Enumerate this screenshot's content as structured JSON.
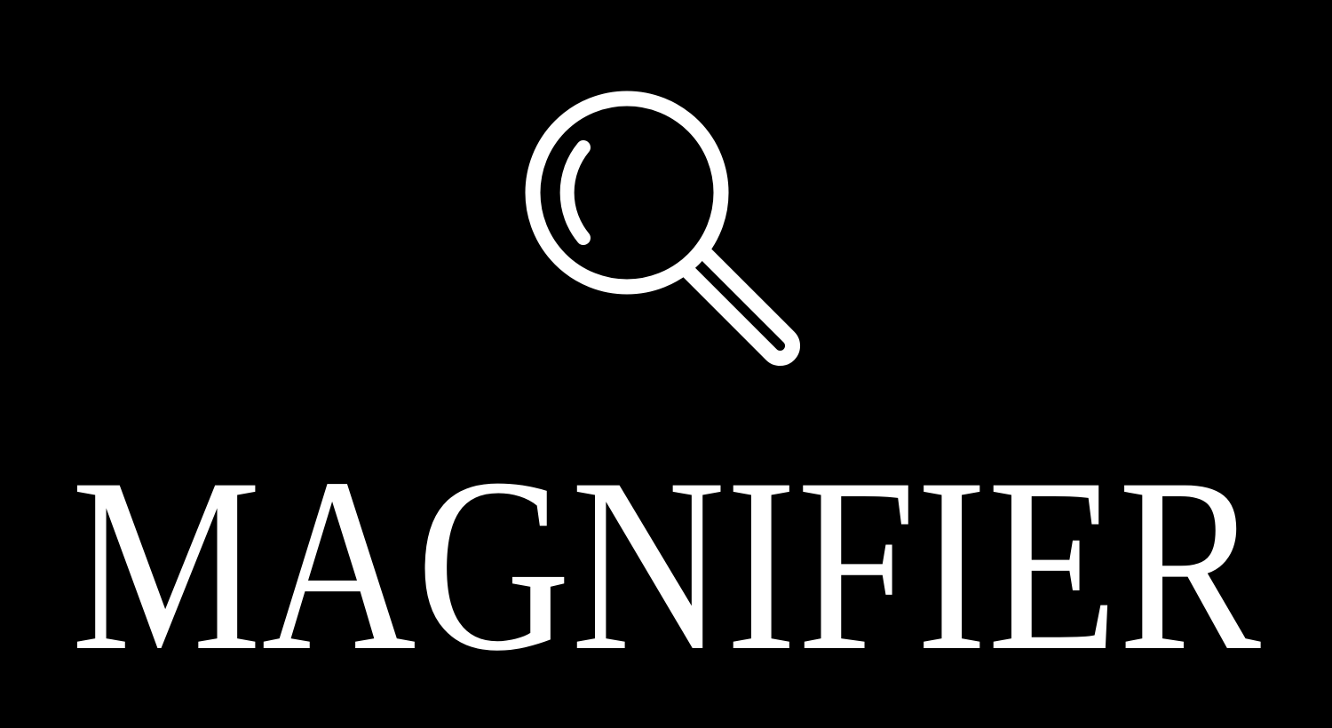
{
  "title": "MAGNIFIER"
}
